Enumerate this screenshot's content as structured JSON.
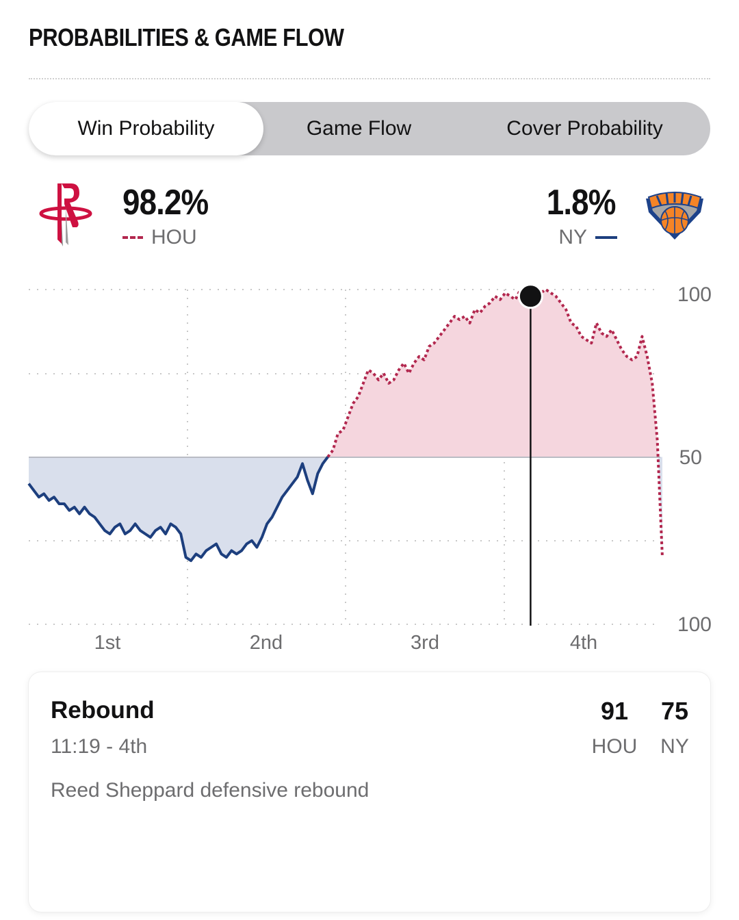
{
  "section_title": "PROBABILITIES & GAME FLOW",
  "tabs": [
    {
      "label": "Win Probability",
      "active": true
    },
    {
      "label": "Game Flow",
      "active": false
    },
    {
      "label": "Cover Probability",
      "active": false
    }
  ],
  "home_team": {
    "abbr": "HOU",
    "probability": "98.2%",
    "color": "#b2274e",
    "line_style": "dashed",
    "logo": "rockets-logo"
  },
  "away_team": {
    "abbr": "NY",
    "probability": "1.8%",
    "color": "#1d3f7e",
    "line_style": "solid",
    "logo": "knicks-logo"
  },
  "chart_data": {
    "type": "line",
    "y_ticks": [
      "100",
      "50",
      "100"
    ],
    "x_labels": [
      "1st",
      "2nd",
      "3rd",
      "4th"
    ],
    "ylim": [
      0,
      100
    ],
    "baseline": 50,
    "grid": true,
    "series_colors": {
      "above": "#b2274e",
      "below": "#1d3f7e",
      "fill_above": "#f5d6de",
      "fill_below": "#d9dfec"
    },
    "marker_index": 99,
    "x": [
      0,
      1,
      2,
      3,
      4,
      5,
      6,
      7,
      8,
      9,
      10,
      11,
      12,
      13,
      14,
      15,
      16,
      17,
      18,
      19,
      20,
      21,
      22,
      23,
      24,
      25,
      26,
      27,
      28,
      29,
      30,
      31,
      32,
      33,
      34,
      35,
      36,
      37,
      38,
      39,
      40,
      41,
      42,
      43,
      44,
      45,
      46,
      47,
      48,
      49,
      50,
      51,
      52,
      53,
      54,
      55,
      56,
      57,
      58,
      59,
      60,
      61,
      62,
      63,
      64,
      65,
      66,
      67,
      68,
      69,
      70,
      71,
      72,
      73,
      74,
      75,
      76,
      77,
      78,
      79,
      80,
      81,
      82,
      83,
      84,
      85,
      86,
      87,
      88,
      89,
      90,
      91,
      92,
      93,
      94,
      95,
      96,
      97,
      98,
      99,
      100,
      101,
      102,
      103,
      104,
      105,
      106,
      107,
      108,
      109,
      110,
      111,
      112,
      113,
      114,
      115,
      116,
      117,
      118,
      119,
      120,
      121,
      122,
      123,
      124,
      125
    ],
    "values": [
      42,
      40,
      38,
      39,
      37,
      38,
      36,
      36,
      34,
      35,
      33,
      35,
      33,
      32,
      30,
      28,
      27,
      29,
      30,
      27,
      28,
      30,
      28,
      27,
      26,
      28,
      29,
      27,
      30,
      29,
      27,
      20,
      19,
      21,
      20,
      22,
      23,
      24,
      21,
      20,
      22,
      21,
      22,
      24,
      25,
      23,
      26,
      30,
      32,
      35,
      38,
      40,
      42,
      44,
      48,
      43,
      39,
      45,
      48,
      50,
      52,
      57,
      58,
      62,
      66,
      68,
      72,
      76,
      75,
      73,
      75,
      72,
      73,
      76,
      78,
      75,
      78,
      80,
      79,
      83,
      84,
      86,
      88,
      90,
      92,
      91,
      92,
      90,
      94,
      93,
      95,
      96,
      98,
      97,
      99,
      98,
      97,
      100,
      99,
      98,
      100,
      99,
      100,
      99,
      98,
      96,
      94,
      90,
      89,
      86,
      85,
      84,
      90,
      87,
      86,
      88,
      85,
      82,
      80,
      79,
      80,
      86,
      80,
      72,
      55,
      20
    ]
  },
  "play": {
    "type": "Rebound",
    "time": "11:19 - 4th",
    "description": "Reed Sheppard defensive rebound",
    "home_score": "91",
    "away_score": "75",
    "home_label": "HOU",
    "away_label": "NY"
  }
}
